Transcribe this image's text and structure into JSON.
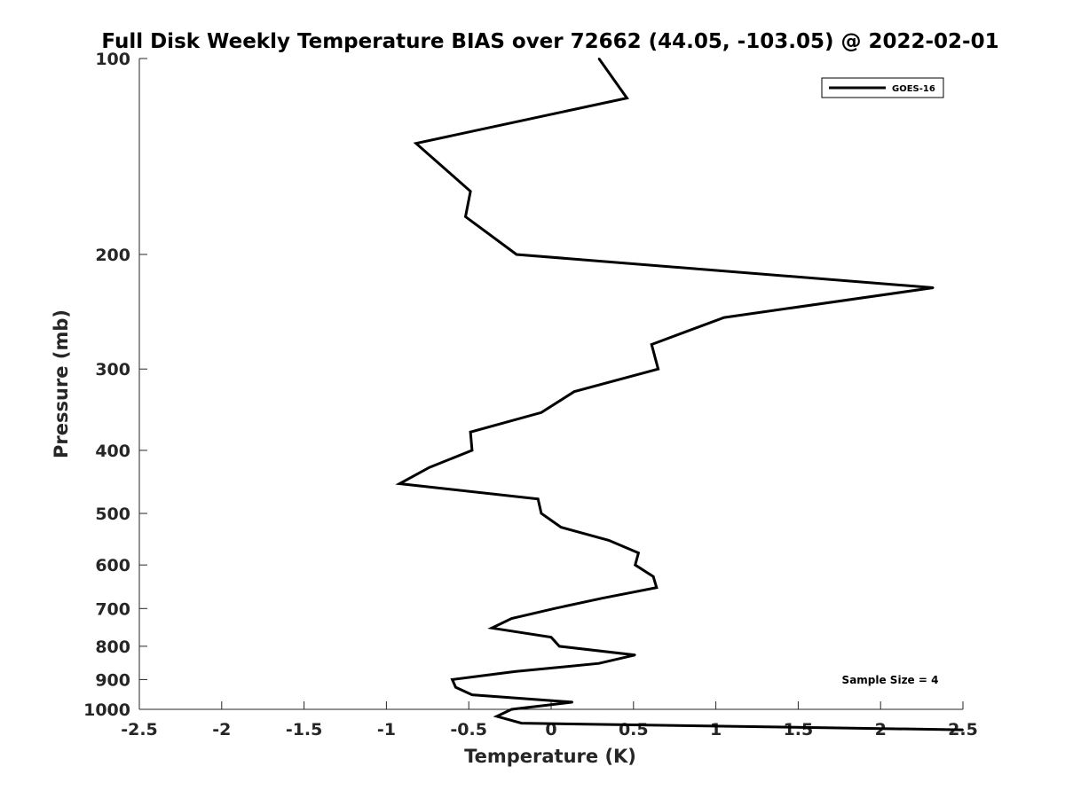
{
  "chart_data": {
    "type": "line",
    "title": "Full Disk Weekly Temperature BIAS over 72662 (44.05, -103.05) @ 2022-02-01",
    "xlabel": "Temperature (K)",
    "ylabel": "Pressure (mb)",
    "xlim": [
      -2.5,
      2.5
    ],
    "ylim": [
      1000,
      100
    ],
    "y_scale": "log",
    "y_reversed": true,
    "grid": false,
    "x_ticks": [
      "-2.5",
      "-2",
      "-1.5",
      "-1",
      "-0.5",
      "0",
      "0.5",
      "1",
      "1.5",
      "2",
      "2.5"
    ],
    "y_ticks": [
      "100",
      "200",
      "300",
      "400",
      "500",
      "600",
      "700",
      "800",
      "900",
      "1000"
    ],
    "legend": {
      "position": "top-right",
      "entries": [
        "GOES-16"
      ]
    },
    "annotation": "Sample Size = 4",
    "series": [
      {
        "name": "GOES-16",
        "color": "#000000",
        "points": [
          {
            "x": 0.29,
            "y": 100
          },
          {
            "x": 0.46,
            "y": 115
          },
          {
            "x": -0.82,
            "y": 135
          },
          {
            "x": -0.49,
            "y": 160
          },
          {
            "x": -0.52,
            "y": 175
          },
          {
            "x": -0.21,
            "y": 200
          },
          {
            "x": 2.32,
            "y": 225
          },
          {
            "x": 1.05,
            "y": 250
          },
          {
            "x": 0.61,
            "y": 275
          },
          {
            "x": 0.65,
            "y": 300
          },
          {
            "x": 0.14,
            "y": 325
          },
          {
            "x": -0.06,
            "y": 350
          },
          {
            "x": -0.49,
            "y": 375
          },
          {
            "x": -0.48,
            "y": 400
          },
          {
            "x": -0.74,
            "y": 425
          },
          {
            "x": -0.92,
            "y": 450
          },
          {
            "x": -0.08,
            "y": 475
          },
          {
            "x": -0.06,
            "y": 500
          },
          {
            "x": 0.06,
            "y": 525
          },
          {
            "x": 0.35,
            "y": 550
          },
          {
            "x": 0.53,
            "y": 575
          },
          {
            "x": 0.51,
            "y": 600
          },
          {
            "x": 0.62,
            "y": 625
          },
          {
            "x": 0.64,
            "y": 650
          },
          {
            "x": 0.31,
            "y": 675
          },
          {
            "x": 0.02,
            "y": 700
          },
          {
            "x": -0.24,
            "y": 725
          },
          {
            "x": -0.36,
            "y": 750
          },
          {
            "x": 0.0,
            "y": 775
          },
          {
            "x": 0.05,
            "y": 800
          },
          {
            "x": 0.51,
            "y": 825
          },
          {
            "x": 0.29,
            "y": 850
          },
          {
            "x": -0.22,
            "y": 875
          },
          {
            "x": -0.6,
            "y": 900
          },
          {
            "x": -0.58,
            "y": 925
          },
          {
            "x": -0.48,
            "y": 950
          },
          {
            "x": 0.13,
            "y": 975
          },
          {
            "x": -0.24,
            "y": 1000
          },
          {
            "x": -0.33,
            "y": 1025
          },
          {
            "x": -0.18,
            "y": 1050
          },
          {
            "x": 2.5,
            "y": 1075
          }
        ]
      }
    ]
  }
}
